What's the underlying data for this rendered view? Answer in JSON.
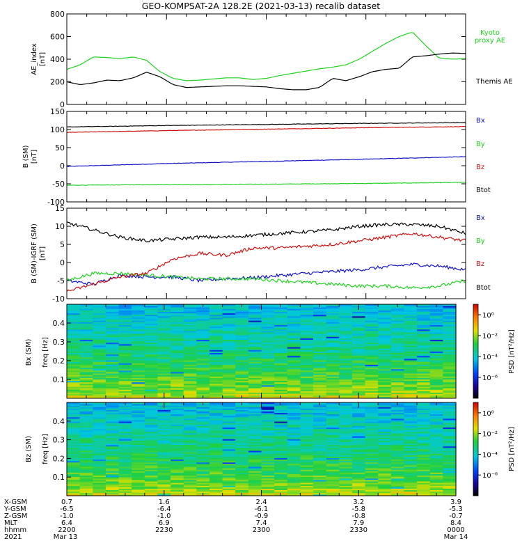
{
  "title": "GEO-KOMPSAT-2A 128.2E (2021-03-13) recalib dataset",
  "colors": {
    "black": "#000000",
    "green": "#1fd21f",
    "red": "#d01010",
    "blue": "#1010c8"
  },
  "chart_data": [
    {
      "type": "line",
      "panel": "ae",
      "ylabel": [
        "AE_index",
        "[nT]"
      ],
      "ylim": [
        0,
        800
      ],
      "yticks": [
        0,
        200,
        400,
        600,
        800
      ],
      "xlim": [
        0,
        60
      ],
      "series": [
        {
          "name": "Kyoto proxy AE",
          "color": "green",
          "x": [
            0,
            2,
            4,
            6,
            8,
            10,
            12,
            14,
            16,
            18,
            20,
            22,
            24,
            26,
            28,
            30,
            32,
            34,
            36,
            38,
            40,
            42,
            44,
            46,
            48,
            50,
            52,
            54,
            56,
            58,
            60
          ],
          "values": [
            310,
            350,
            420,
            415,
            405,
            420,
            390,
            290,
            230,
            210,
            215,
            225,
            235,
            235,
            220,
            230,
            255,
            275,
            295,
            315,
            330,
            350,
            400,
            470,
            540,
            600,
            640,
            520,
            410,
            400,
            405
          ]
        },
        {
          "name": "Themis AE",
          "color": "black",
          "x": [
            0,
            2,
            4,
            6,
            8,
            10,
            12,
            14,
            16,
            18,
            20,
            22,
            24,
            26,
            28,
            30,
            32,
            34,
            36,
            38,
            40,
            42,
            44,
            46,
            48,
            50,
            52,
            54,
            56,
            58,
            60
          ],
          "values": [
            200,
            175,
            190,
            215,
            210,
            235,
            285,
            245,
            175,
            150,
            155,
            160,
            165,
            165,
            160,
            155,
            140,
            130,
            130,
            150,
            230,
            210,
            245,
            290,
            310,
            320,
            420,
            430,
            445,
            455,
            450
          ]
        }
      ],
      "legend": [
        "Kyoto proxy AE",
        "Themis AE"
      ]
    },
    {
      "type": "line",
      "panel": "b_sm",
      "ylabel": [
        "B (SM)",
        "[nT]"
      ],
      "ylim": [
        -100,
        150
      ],
      "yticks": [
        -100,
        -50,
        0,
        50,
        100,
        150
      ],
      "xlim": [
        0,
        60
      ],
      "series": [
        {
          "name": "Bx",
          "color": "blue",
          "x": [
            0,
            15,
            30,
            45,
            60
          ],
          "values": [
            -2,
            6,
            12,
            18,
            25
          ]
        },
        {
          "name": "By",
          "color": "green",
          "x": [
            0,
            15,
            30,
            45,
            60
          ],
          "values": [
            -54,
            -52,
            -51,
            -49,
            -46
          ]
        },
        {
          "name": "Bz",
          "color": "red",
          "x": [
            0,
            15,
            30,
            45,
            60
          ],
          "values": [
            92,
            97,
            101,
            105,
            108
          ]
        },
        {
          "name": "Btot",
          "color": "black",
          "x": [
            0,
            15,
            30,
            45,
            60
          ],
          "values": [
            107,
            111,
            114,
            117,
            119
          ]
        }
      ],
      "legend": [
        "Bx",
        "By",
        "Bz",
        "Btot"
      ]
    },
    {
      "type": "line",
      "panel": "b_minus_igrf",
      "ylabel": [
        "B (SM)-IGRF (SM)",
        "[nT]"
      ],
      "ylim": [
        -10,
        15
      ],
      "yticks": [
        -10,
        -5,
        0,
        5,
        10,
        15
      ],
      "xlim": [
        0,
        60
      ],
      "series": [
        {
          "name": "Bx",
          "color": "blue",
          "x": [
            0,
            4,
            8,
            12,
            16,
            20,
            24,
            28,
            32,
            36,
            40,
            44,
            48,
            52,
            56,
            60
          ],
          "values": [
            -5,
            -6,
            -3.5,
            -4,
            -4,
            -5,
            -4.5,
            -4.2,
            -3.6,
            -3,
            -2.5,
            -2,
            -1.2,
            -0.5,
            -1,
            -2
          ]
        },
        {
          "name": "By",
          "color": "green",
          "x": [
            0,
            4,
            8,
            12,
            16,
            20,
            24,
            28,
            32,
            36,
            40,
            44,
            48,
            52,
            56,
            60
          ],
          "values": [
            -5,
            -3,
            -3,
            -3.5,
            -4,
            -4.5,
            -4.5,
            -4.5,
            -5,
            -5.5,
            -6,
            -6.5,
            -6.5,
            -7,
            -6.5,
            -5
          ]
        },
        {
          "name": "Bz",
          "color": "red",
          "x": [
            0,
            4,
            8,
            12,
            16,
            20,
            24,
            28,
            32,
            36,
            40,
            44,
            48,
            52,
            56,
            60
          ],
          "values": [
            -8,
            -6,
            -4,
            -3,
            1,
            2.5,
            2,
            4,
            4,
            4.5,
            5,
            6,
            7,
            8,
            7,
            6
          ]
        },
        {
          "name": "Btot",
          "color": "black",
          "x": [
            0,
            4,
            8,
            12,
            16,
            20,
            24,
            28,
            32,
            36,
            40,
            44,
            48,
            52,
            56,
            60
          ],
          "values": [
            11,
            9,
            7,
            6,
            6.5,
            7,
            7,
            7.5,
            8,
            8.5,
            9,
            10,
            10.5,
            10.5,
            10,
            8
          ]
        }
      ],
      "legend": [
        "Bx",
        "By",
        "Bz",
        "Btot"
      ]
    },
    {
      "type": "heatmap",
      "panel": "spec_bx",
      "ylabel": [
        "Bx (SM)",
        "freq [Hz]"
      ],
      "ylim": [
        0,
        0.5
      ],
      "yticks": [
        0.1,
        0.2,
        0.3,
        0.4
      ],
      "colorbar": {
        "label": "PSD [nT²/Hz]",
        "scale": "log",
        "range": [
          1e-08,
          10
        ],
        "ticks": [
          "10⁰",
          "10⁻²",
          "10⁻⁴",
          "10⁻⁶"
        ]
      }
    },
    {
      "type": "heatmap",
      "panel": "spec_bz",
      "ylabel": [
        "Bz (SM)",
        "freq [Hz]"
      ],
      "ylim": [
        0,
        0.5
      ],
      "yticks": [
        0.1,
        0.2,
        0.3,
        0.4
      ],
      "colorbar": {
        "label": "PSD [nT²/Hz]",
        "scale": "log",
        "range": [
          1e-08,
          10
        ],
        "ticks": [
          "10⁰",
          "10⁻²",
          "10⁻⁴",
          "10⁻⁶"
        ]
      }
    }
  ],
  "x_axis_labels": {
    "row_labels": [
      "X-GSM",
      "Y-GSM",
      "Z-GSM",
      "MLT",
      "hhmm",
      "2021"
    ],
    "columns": [
      {
        "t": 0,
        "values": [
          "0.7",
          "-6.5",
          "-1.0",
          "6.4",
          "2200",
          "Mar 13"
        ]
      },
      {
        "t": 15,
        "values": [
          "1.6",
          "-6.4",
          "-1.0",
          "6.9",
          "2230",
          ""
        ]
      },
      {
        "t": 30,
        "values": [
          "2.4",
          "-6.1",
          "-0.9",
          "7.4",
          "2300",
          ""
        ]
      },
      {
        "t": 45,
        "values": [
          "3.2",
          "-5.8",
          "-0.8",
          "7.9",
          "2330",
          ""
        ]
      },
      {
        "t": 60,
        "values": [
          "3.9",
          "-5.3",
          "-0.7",
          "8.4",
          "0000",
          "Mar 14"
        ]
      }
    ]
  }
}
